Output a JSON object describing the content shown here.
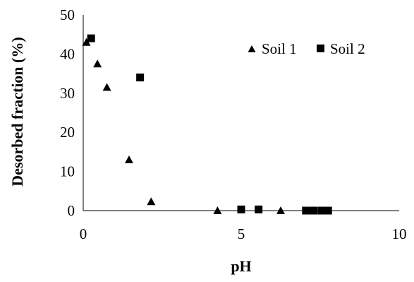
{
  "chart_data": {
    "type": "scatter",
    "xlabel": "pH",
    "ylabel": "Desorbed fraction (%)",
    "xlim": [
      0,
      10
    ],
    "ylim": [
      0,
      50
    ],
    "xticks": [
      0,
      5,
      10
    ],
    "yticks": [
      0,
      10,
      20,
      30,
      40,
      50
    ],
    "grid": false,
    "legend_position": "top-right",
    "series": [
      {
        "name": "Soil 1",
        "marker": "triangle",
        "color": "#000000",
        "points": [
          {
            "x": 0.1,
            "y": 43
          },
          {
            "x": 0.45,
            "y": 37.5
          },
          {
            "x": 0.75,
            "y": 31.5
          },
          {
            "x": 1.45,
            "y": 13
          },
          {
            "x": 2.15,
            "y": 2.3
          },
          {
            "x": 4.25,
            "y": 0
          },
          {
            "x": 6.25,
            "y": 0
          },
          {
            "x": 7.2,
            "y": 0
          },
          {
            "x": 7.65,
            "y": 0
          }
        ]
      },
      {
        "name": "Soil 2",
        "marker": "square",
        "color": "#000000",
        "points": [
          {
            "x": 0.25,
            "y": 44
          },
          {
            "x": 1.8,
            "y": 34
          },
          {
            "x": 5.0,
            "y": 0.3
          },
          {
            "x": 5.55,
            "y": 0.3
          },
          {
            "x": 7.05,
            "y": 0
          },
          {
            "x": 7.3,
            "y": 0
          },
          {
            "x": 7.55,
            "y": 0
          },
          {
            "x": 7.75,
            "y": 0
          }
        ]
      }
    ]
  }
}
